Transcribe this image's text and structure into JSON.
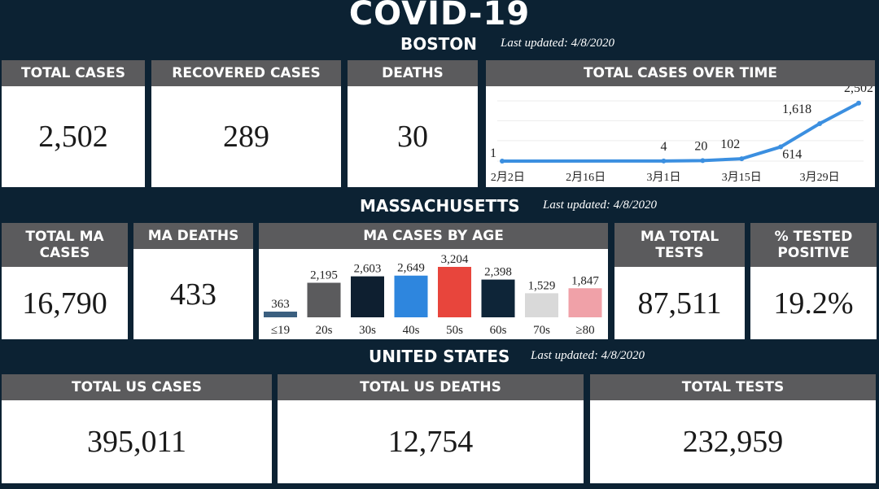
{
  "title": "COVID-19",
  "boston": {
    "label": "BOSTON",
    "updated": "Last updated: 4/8/2020",
    "total_cases_label": "TOTAL CASES",
    "total_cases": "2,502",
    "recovered_label": "RECOVERED CASES",
    "recovered": "289",
    "deaths_label": "DEATHS",
    "deaths": "30",
    "chart_label": "TOTAL CASES OVER TIME"
  },
  "massachusetts": {
    "label": "MASSACHUSETTS",
    "updated": "Last updated: 4/8/2020",
    "total_label": "TOTAL MA CASES",
    "total": "16,790",
    "deaths_label": "MA DEATHS",
    "deaths": "433",
    "age_label": "MA CASES BY AGE",
    "tests_label": "MA TOTAL TESTS",
    "tests": "87,511",
    "positive_label": "% TESTED POSITIVE",
    "positive": "19.2%"
  },
  "us": {
    "label": "UNITED STATES",
    "updated": "Last updated: 4/8/2020",
    "cases_label": "TOTAL US CASES",
    "cases": "395,011",
    "deaths_label": "TOTAL US DEATHS",
    "deaths": "12,754",
    "tests_label": "TOTAL TESTS",
    "tests": "232,959"
  },
  "colors": {
    "background": "#0c2233",
    "header": "#5b5b5d",
    "line": "#3b8fe0"
  },
  "chart_data": [
    {
      "type": "line",
      "x_ticks": [
        "2月2日",
        "2月16日",
        "3月1日",
        "3月15日",
        "3月29日"
      ],
      "points": [
        {
          "x": "2020-02-01",
          "y": 1,
          "label": "1"
        },
        {
          "x": "2020-03-01",
          "y": 4,
          "label": "4"
        },
        {
          "x": "2020-03-08",
          "y": 20,
          "label": "20"
        },
        {
          "x": "2020-03-15",
          "y": 102,
          "label": "102"
        },
        {
          "x": "2020-03-22",
          "y": 614,
          "label": "614"
        },
        {
          "x": "2020-03-29",
          "y": 1618,
          "label": "1,618"
        },
        {
          "x": "2020-04-05",
          "y": 2502,
          "label": "2,502"
        }
      ],
      "ylim": [
        0,
        2600
      ],
      "grid": true,
      "color": "#3b8fe0"
    },
    {
      "type": "bar",
      "categories": [
        "≤19",
        "20s",
        "30s",
        "40s",
        "50s",
        "60s",
        "70s",
        "≥80"
      ],
      "values": [
        363,
        2195,
        2603,
        2649,
        3204,
        2398,
        1529,
        1847
      ],
      "labels": [
        "363",
        "2,195",
        "2,603",
        "2,649",
        "3,204",
        "2,398",
        "1,529",
        "1,847"
      ],
      "colors": [
        "#3b5f7f",
        "#5b5b5d",
        "#0e1f30",
        "#2e86de",
        "#e8453c",
        "#0e2538",
        "#d9d9d9",
        "#f0a1a8"
      ],
      "ylim": [
        0,
        3204
      ]
    }
  ]
}
